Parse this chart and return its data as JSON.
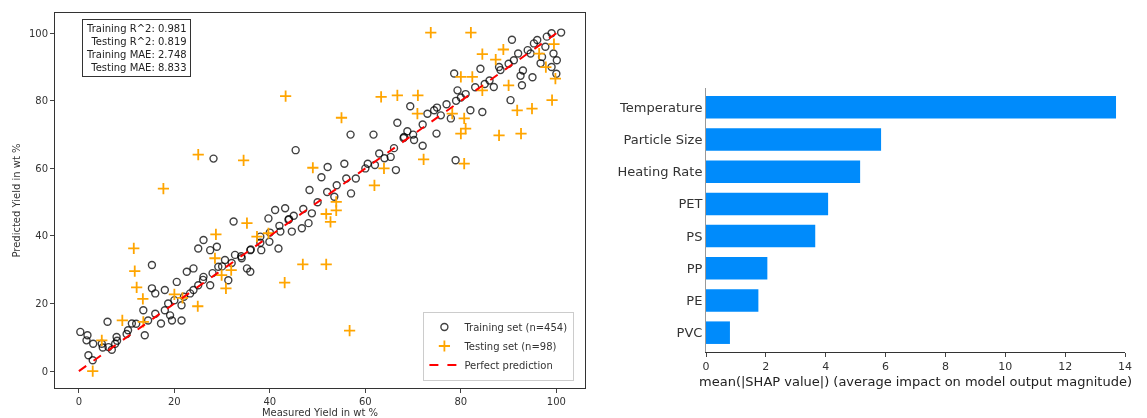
{
  "chart_data": [
    {
      "type": "scatter",
      "xlabel": "Measured Yield in wt %",
      "ylabel": "Predicted Yield in wt %",
      "xlim": [
        -5,
        106
      ],
      "ylim": [
        -5,
        106
      ],
      "xticks": [
        0,
        20,
        40,
        60,
        80,
        100
      ],
      "yticks": [
        0,
        20,
        40,
        60,
        80,
        100
      ],
      "grid": false,
      "legend": "bottom right",
      "annotations": [
        "Training R^2: 0.981\nTesting R^2: 0.819\nTraining MAE: 2.748\nTesting MAE: 8.833"
      ],
      "series": [
        {
          "name": "Training set (n=454)",
          "color": "#000000",
          "marker": "circle",
          "x": [
            0.3,
            1.8,
            1.6,
            2,
            2.9,
            3,
            4.8,
            6,
            6.2,
            6.9,
            7.9,
            7.6,
            10.3,
            11.1,
            13.5,
            13.8,
            15.3,
            15.3,
            16,
            14.5,
            17.2,
            18,
            18.7,
            19.1,
            19.5,
            20.5,
            21.5,
            21.5,
            22.6,
            23.3,
            24,
            25,
            25,
            26.1,
            26.1,
            27.5,
            27.5,
            28.9,
            29.2,
            30.6,
            31.3,
            32.4,
            32.7,
            34.1,
            35.2,
            35.9,
            35.9,
            38,
            38.2,
            39.7,
            41.1,
            39.9,
            41.8,
            42.2,
            43.2,
            43.9,
            44.6,
            46.7,
            48.1,
            48.8,
            28.2,
            45.4,
            56.9,
            61.7,
            78.9,
            90.7,
            101,
            78.6,
            84.1,
            69.4,
            72,
            74.9,
            66.7,
            62.9,
            66.4,
            52.1,
            57,
            88.3,
            92.8,
            90.4,
            100.1,
            95.3,
            86.9,
            79.3,
            82,
            75.8,
            77.9,
            84.5,
            68.1,
            68.8,
            70.2,
            73,
            74.4,
            91.1,
            94.6,
            96.7,
            99.4,
            97.7,
            92.5,
            53.5,
            55.6,
            60.5,
            65.3,
            48.3,
            50.8,
            45,
            47,
            50,
            52,
            54,
            56,
            58,
            60,
            62,
            64,
            66,
            68,
            70,
            72,
            75,
            77,
            79,
            80,
            81,
            83,
            85,
            86,
            88,
            90,
            92,
            94,
            96,
            98,
            99,
            97,
            99,
            100,
            95,
            93,
            5,
            8,
            10,
            12,
            16,
            18,
            20,
            22,
            24,
            26,
            28,
            30,
            32,
            34,
            36,
            38,
            40,
            42,
            44
          ],
          "values": [
            11.6,
            10.6,
            9.1,
            4.7,
            3.2,
            8.1,
            8.1,
            14.6,
            7.1,
            6.3,
            10.1,
            8.1,
            12.1,
            14.1,
            18,
            10.6,
            31.4,
            24.5,
            23,
            15,
            14.1,
            24,
            20,
            16.5,
            15,
            26.4,
            19.5,
            15,
            29.4,
            23,
            30.4,
            25.4,
            36.3,
            38.8,
            27.9,
            25.4,
            35.8,
            36.8,
            30.9,
            32.9,
            26.9,
            44.3,
            34.4,
            33.4,
            30.4,
            29.4,
            35.8,
            39.8,
            35.8,
            45.2,
            47.7,
            38.3,
            36.3,
            41.3,
            48.2,
            44.8,
            41.3,
            42.3,
            43.8,
            46.7,
            62.9,
            65.4,
            70,
            70,
            62.4,
            98.1,
            100.2,
            88.1,
            89.5,
            78.4,
            66.7,
            70.3,
            73.5,
            64.4,
            59.5,
            60.4,
            52.6,
            89.1,
            84.6,
            80.2,
            92,
            97,
            84.1,
            83.1,
            77.2,
            75.7,
            74.8,
            76.7,
            69.3,
            71,
            68.4,
            76.2,
            77.2,
            92,
            94,
            91.1,
            94,
            96,
            87.4,
            51.6,
            61.4,
            61.4,
            63.4,
            53.6,
            57.4,
            46,
            48,
            50,
            53,
            55,
            57,
            57,
            60,
            61,
            63,
            66,
            69,
            70,
            73,
            78,
            79,
            80,
            81,
            82,
            84,
            85,
            86,
            90,
            91,
            94,
            95,
            98,
            99,
            100,
            93,
            90,
            88,
            87,
            89,
            7,
            9,
            11,
            14,
            17,
            18,
            21,
            22,
            24,
            27,
            29,
            31,
            32,
            34,
            36,
            38,
            41,
            43,
            45
          ]
        },
        {
          "name": "Testing set (n=98)",
          "color": "#ffa500",
          "marker": "cross",
          "x": [
            43.3,
            25,
            34.5,
            17.7,
            49,
            73.7,
            82.1,
            84.5,
            88.9,
            87.3,
            63.3,
            66.7,
            71,
            55,
            72.2,
            80.7,
            88,
            92.6,
            91.8,
            94.9,
            99.1,
            99.8,
            97.8,
            96.4,
            99.5,
            80,
            82.4,
            90,
            84.5,
            78.2,
            80.7,
            81,
            80,
            70.9,
            63.9,
            61.9,
            53.9,
            2.9,
            4.8,
            9.1,
            11.5,
            11.7,
            12.1,
            13.4,
            13.5,
            24.9,
            28.7,
            28.5,
            29.9,
            30.8,
            31.9,
            35.2,
            37.3,
            39.7,
            43.1,
            46.9,
            20,
            21.7,
            51.8,
            56.7,
            51.8,
            52.7,
            53.9
          ],
          "values": [
            81.4,
            64.1,
            62.4,
            54,
            60.2,
            100.2,
            100.2,
            93.8,
            95.2,
            92.2,
            81.2,
            81.6,
            81.6,
            75,
            62.7,
            61.4,
            69.8,
            70.3,
            77.2,
            77.7,
            80.2,
            86.6,
            90,
            94,
            96.8,
            87.1,
            87.1,
            84.6,
            83.1,
            76.2,
            74.8,
            71.8,
            70.3,
            76.2,
            60,
            55,
            50.1,
            0,
            9.1,
            15,
            36.3,
            29.6,
            24.8,
            21.4,
            14.6,
            19.2,
            40.5,
            33.4,
            28.4,
            24.5,
            29.9,
            43.8,
            39.8,
            40.8,
            26.2,
            31.6,
            22.7,
            21.7,
            31.6,
            12,
            46.5,
            44.2,
            47.6
          ]
        },
        {
          "name": "Perfect prediction",
          "type": "line",
          "color": "#ff0000",
          "line_style": "dashed",
          "x": [
            0,
            100
          ],
          "values": [
            0,
            100
          ]
        }
      ]
    },
    {
      "type": "bar",
      "orientation": "horizontal",
      "xlabel": "mean(|SHAP value|) (average impact on model output magnitude)",
      "categories": [
        "Temperature",
        "Particle Size",
        "Heating Rate",
        "PET",
        "PS",
        "PP",
        "PE",
        "PVC"
      ],
      "values": [
        13.7,
        5.85,
        5.15,
        4.08,
        3.65,
        2.05,
        1.75,
        0.8
      ],
      "color": "#008bfb",
      "xlim": [
        0,
        14
      ],
      "xticks": [
        0,
        2,
        4,
        6,
        8,
        10,
        12,
        14
      ],
      "grid": false,
      "legend": false
    }
  ]
}
